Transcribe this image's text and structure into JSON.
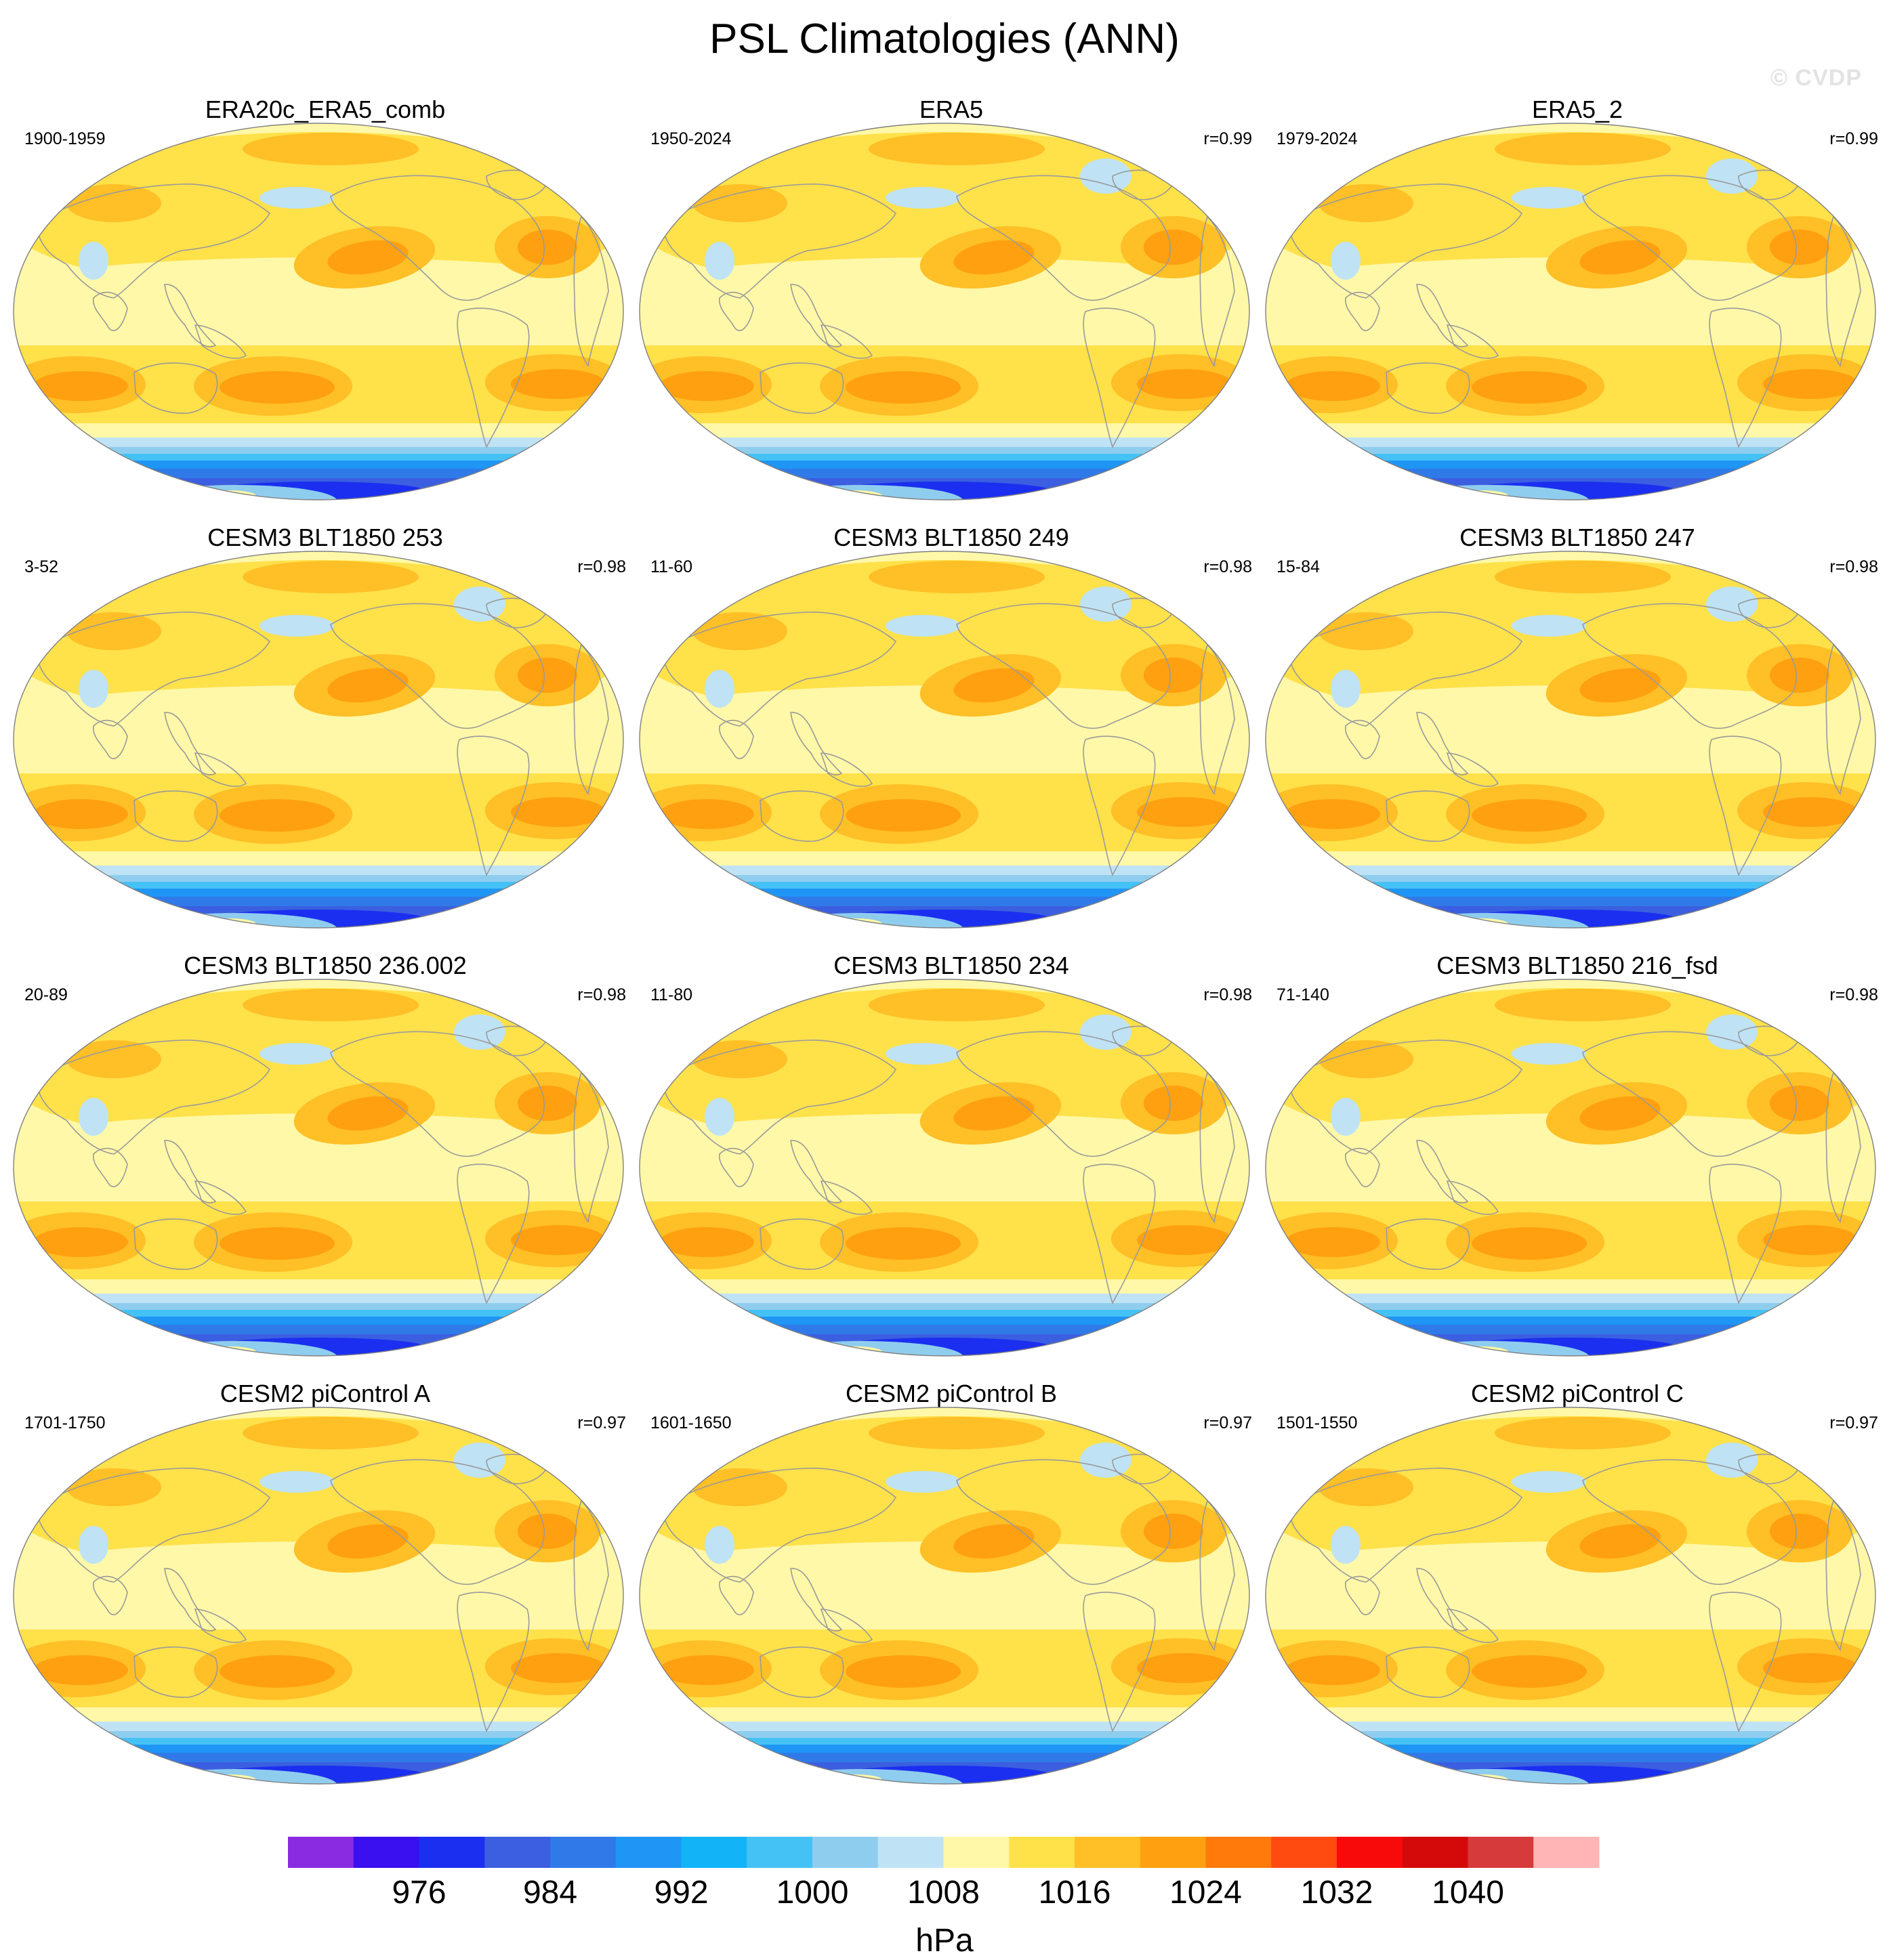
{
  "title": "PSL Climatologies (ANN)",
  "watermark": "© CVDP",
  "colors": {
    "land": "#9a9a9a",
    "outline": "#808080"
  },
  "panels": [
    {
      "title": "ERA20c_ERA5_comb",
      "years": "1900-1959",
      "r": ""
    },
    {
      "title": "ERA5",
      "years": "1950-2024",
      "r": "r=0.99"
    },
    {
      "title": "ERA5_2",
      "years": "1979-2024",
      "r": "r=0.99"
    },
    {
      "title": "CESM3 BLT1850 253",
      "years": "3-52",
      "r": "r=0.98"
    },
    {
      "title": "CESM3 BLT1850 249",
      "years": "11-60",
      "r": "r=0.98"
    },
    {
      "title": "CESM3 BLT1850 247",
      "years": "15-84",
      "r": "r=0.98"
    },
    {
      "title": "CESM3 BLT1850 236.002",
      "years": "20-89",
      "r": "r=0.98"
    },
    {
      "title": "CESM3 BLT1850 234",
      "years": "11-80",
      "r": "r=0.98"
    },
    {
      "title": "CESM3 BLT1850 216_fsd",
      "years": "71-140",
      "r": "r=0.98"
    },
    {
      "title": "CESM2 piControl A",
      "years": "1701-1750",
      "r": "r=0.97"
    },
    {
      "title": "CESM2 piControl B",
      "years": "1601-1650",
      "r": "r=0.97"
    },
    {
      "title": "CESM2 piControl C",
      "years": "1501-1550",
      "r": "r=0.97"
    }
  ],
  "colorbar": {
    "unit": "hPa",
    "labels": [
      "976",
      "984",
      "992",
      "1000",
      "1008",
      "1016",
      "1024",
      "1032",
      "1040"
    ],
    "colors": [
      "#8a2be2",
      "#3a0ff0",
      "#1b2ff0",
      "#3b5fe0",
      "#2f7ae8",
      "#1f95f5",
      "#12b4f7",
      "#45c2f5",
      "#8fcdee",
      "#bfe3f5",
      "#fff8a8",
      "#ffe14a",
      "#ffbf26",
      "#ffa011",
      "#ff7a0a",
      "#ff4a10",
      "#f80a0a",
      "#d40a0a",
      "#d63a3a",
      "#ffb5b5"
    ]
  }
}
